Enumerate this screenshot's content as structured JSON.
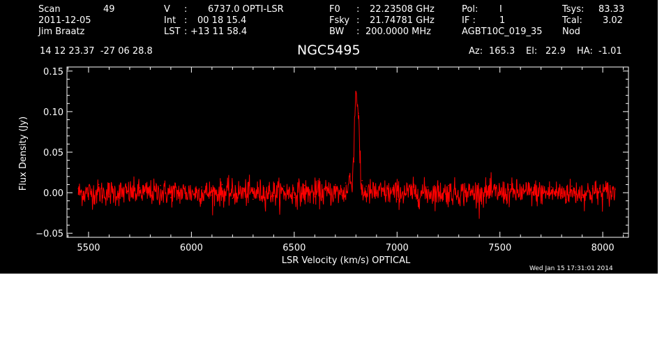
{
  "header": {
    "scan_label": "Scan",
    "scan_value": "49",
    "date": "2011-12-05",
    "observer": "Jim Braatz",
    "v_label": "V",
    "v_sep": ":",
    "v_value": "6737.0 OPTI-LSR",
    "int_label": "Int",
    "int_sep": ":",
    "int_value": "00 18 15.4",
    "lst_label": "LST",
    "lst_sep": ":",
    "lst_value": "+13 11 58.4",
    "f0_label": "F0",
    "f0_sep": ":",
    "f0_value": "22.23508 GHz",
    "fsky_label": "Fsky",
    "fsky_sep": ":",
    "fsky_value": "21.74781 GHz",
    "bw_label": "BW",
    "bw_sep": ":",
    "bw_value": "200.0000 MHz",
    "pol_label": "Pol:",
    "pol_value": "I",
    "if_label": "IF :",
    "if_value": "1",
    "project": "AGBT10C_019_35",
    "tsys_label": "Tsys:",
    "tsys_value": "83.33",
    "tcal_label": "Tcal:",
    "tcal_value": "3.02",
    "procedure": "Nod",
    "coords": "14 12 23.37  -27 06 28.8",
    "source": "NGC5495",
    "az_label": "Az:",
    "az_value": "165.3",
    "el_label": "El:",
    "el_value": "22.9",
    "ha_label": "HA:",
    "ha_value": "-1.01",
    "timestamp": "Wed Jan 15 17:31:01 2014"
  },
  "colors": {
    "background": "#000000",
    "foreground": "#ffffff",
    "trace": "#ff0000"
  },
  "chart_data": {
    "type": "line",
    "title": "NGC5495",
    "xlabel": "LSR Velocity (km/s) OPTICAL",
    "ylabel": "Flux Density (Jy)",
    "xlim": [
      5395,
      8125
    ],
    "ylim": [
      -0.055,
      0.155
    ],
    "xticks": [
      5500,
      6000,
      6500,
      7000,
      7500,
      8000
    ],
    "xtick_labels": [
      "5500",
      "6000",
      "6500",
      "7000",
      "7500",
      "8000"
    ],
    "yticks": [
      -0.05,
      0.0,
      0.05,
      0.1,
      0.15
    ],
    "ytick_labels": [
      "−0.05",
      "0.00",
      "0.05",
      "0.10",
      "0.15"
    ],
    "grid": false,
    "series": [
      {
        "color": "#ff0000",
        "x_start": 5450,
        "x_end": 8060,
        "noise_rms_jy": 0.008,
        "baseline_jy": 0.0,
        "peaks": [
          {
            "x": 6800,
            "y": 0.123
          },
          {
            "x": 6812,
            "y": 0.098
          },
          {
            "x": 6790,
            "y": 0.038
          },
          {
            "x": 6770,
            "y": 0.02
          }
        ],
        "points": [
          [
            5450,
            0.005
          ],
          [
            5500,
            -0.008
          ],
          [
            5550,
            0.01
          ],
          [
            5600,
            -0.005
          ],
          [
            5650,
            0.008
          ],
          [
            5700,
            -0.01
          ],
          [
            5750,
            0.006
          ],
          [
            5800,
            -0.004
          ],
          [
            5850,
            0.009
          ],
          [
            5900,
            -0.006
          ],
          [
            5950,
            0.004
          ],
          [
            6000,
            -0.009
          ],
          [
            6050,
            0.007
          ],
          [
            6100,
            -0.003
          ],
          [
            6150,
            0.01
          ],
          [
            6200,
            -0.007
          ],
          [
            6250,
            0.005
          ],
          [
            6300,
            -0.008
          ],
          [
            6350,
            0.006
          ],
          [
            6400,
            -0.004
          ],
          [
            6450,
            0.008
          ],
          [
            6500,
            -0.006
          ],
          [
            6550,
            0.009
          ],
          [
            6600,
            -0.005
          ],
          [
            6650,
            0.007
          ],
          [
            6700,
            0.01
          ],
          [
            6750,
            0.012
          ],
          [
            6770,
            0.02
          ],
          [
            6790,
            0.038
          ],
          [
            6800,
            0.123
          ],
          [
            6812,
            0.098
          ],
          [
            6830,
            0.015
          ],
          [
            6850,
            0.008
          ],
          [
            6900,
            -0.004
          ],
          [
            6950,
            0.006
          ],
          [
            7000,
            -0.008
          ],
          [
            7050,
            0.005
          ],
          [
            7100,
            -0.01
          ],
          [
            7150,
            0.007
          ],
          [
            7200,
            -0.005
          ],
          [
            7250,
            0.009
          ],
          [
            7300,
            -0.006
          ],
          [
            7350,
            0.004
          ],
          [
            7400,
            -0.008
          ],
          [
            7450,
            0.006
          ],
          [
            7500,
            -0.003
          ],
          [
            7550,
            0.01
          ],
          [
            7600,
            -0.007
          ],
          [
            7650,
            0.005
          ],
          [
            7700,
            -0.009
          ],
          [
            7750,
            0.007
          ],
          [
            7800,
            -0.004
          ],
          [
            7850,
            0.008
          ],
          [
            7900,
            -0.006
          ],
          [
            7950,
            0.005
          ],
          [
            8000,
            -0.008
          ],
          [
            8060,
            0.004
          ]
        ]
      }
    ]
  }
}
